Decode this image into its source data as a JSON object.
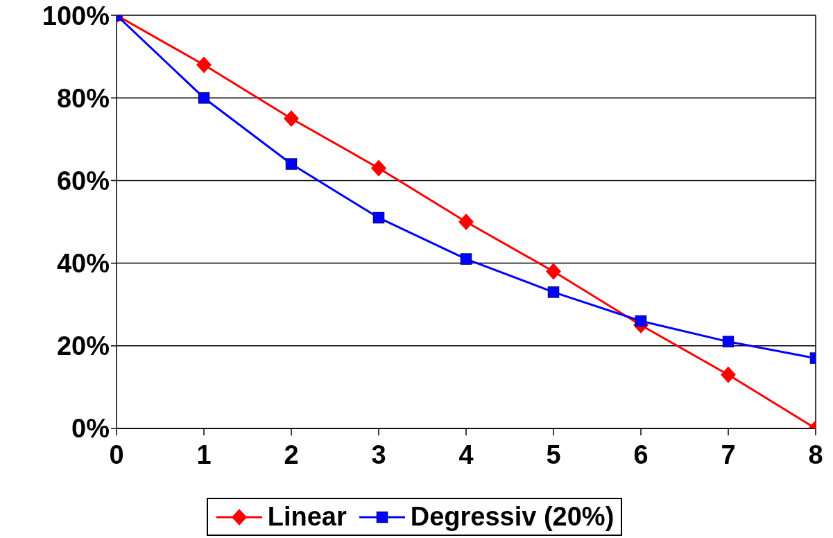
{
  "chart_data": {
    "type": "line",
    "x": [
      0,
      1,
      2,
      3,
      4,
      5,
      6,
      7,
      8
    ],
    "series": [
      {
        "name": "Linear",
        "color": "#ff0000",
        "marker": "diamond",
        "values": [
          100,
          88,
          75,
          63,
          50,
          38,
          25,
          13,
          0
        ]
      },
      {
        "name": "Degressiv (20%)",
        "color": "#0000ff",
        "marker": "square",
        "values": [
          100,
          80,
          64,
          51,
          41,
          33,
          26,
          21,
          17
        ]
      }
    ],
    "xlim": [
      0,
      8
    ],
    "xticks": [
      0,
      1,
      2,
      3,
      4,
      5,
      6,
      7,
      8
    ],
    "ylim": [
      0,
      100
    ],
    "yticks": [
      {
        "value": 0,
        "label": "0%"
      },
      {
        "value": 20,
        "label": "20%"
      },
      {
        "value": 40,
        "label": "40%"
      },
      {
        "value": 60,
        "label": "60%"
      },
      {
        "value": 80,
        "label": "80%"
      },
      {
        "value": 100,
        "label": "100%"
      }
    ],
    "grid": "y",
    "legend": "bottom",
    "line_style": "solid"
  }
}
